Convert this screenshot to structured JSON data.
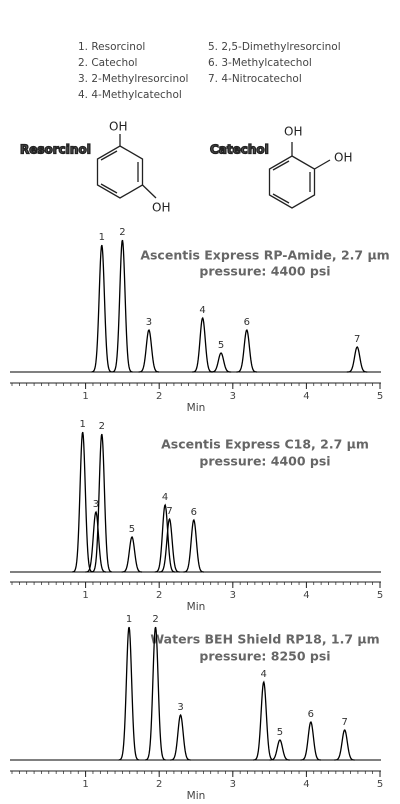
{
  "compounds": [
    "1. Resorcinol",
    "2. Catechol",
    "3. 2-Methylresorcinol",
    "4. 4-Methylcatechol",
    "5. 2,5-Dimethylresorcinol",
    "6. 3-Methylcatechol",
    "7. 4-Nitrocatechol"
  ],
  "structures": [
    {
      "name": "Resorcinol",
      "groups": [
        "OH",
        "OH"
      ]
    },
    {
      "name": "Catechol",
      "groups": [
        "OH",
        "OH"
      ]
    }
  ],
  "chart_data": [
    {
      "type": "chromatogram",
      "title": "Ascentis Express RP-Amide, 2.7 µm",
      "subtitle": "pressure: 4400 psi",
      "x_label": "Min",
      "xlim": [
        0,
        5
      ],
      "xticks": [
        1,
        2,
        3,
        4,
        5
      ],
      "color": "#000000",
      "peak_labels": [
        "1",
        "2",
        "3",
        "4",
        "5",
        "6",
        "7"
      ],
      "x": [
        1.22,
        1.5,
        1.86,
        2.59,
        2.84,
        3.19,
        4.69
      ],
      "values": [
        127,
        132,
        42,
        54,
        19,
        42,
        25
      ]
    },
    {
      "type": "chromatogram",
      "title": "Ascentis Express C18, 2.7 µm",
      "subtitle": "pressure: 4400 psi",
      "x_label": "Min",
      "xlim": [
        0,
        5
      ],
      "xticks": [
        1,
        2,
        3,
        4,
        5
      ],
      "color": "#000000",
      "peak_labels": [
        "1",
        "3",
        "2",
        "5",
        "4",
        "7",
        "6"
      ],
      "x": [
        0.96,
        1.14,
        1.22,
        1.63,
        2.08,
        2.14,
        2.47
      ],
      "values": [
        140,
        60,
        138,
        35,
        67,
        53,
        52
      ]
    },
    {
      "type": "chromatogram",
      "title": "Waters BEH Shield RP18, 1.7 µm",
      "subtitle": "pressure: 8250 psi",
      "x_label": "Min",
      "xlim": [
        0,
        5
      ],
      "xticks": [
        1,
        2,
        3,
        4,
        5
      ],
      "color": "#000000",
      "peak_labels": [
        "1",
        "2",
        "3",
        "4",
        "5",
        "6",
        "7"
      ],
      "x": [
        1.59,
        1.95,
        2.29,
        3.42,
        3.64,
        4.06,
        4.52
      ],
      "values": [
        133,
        133,
        45,
        78,
        20,
        38,
        30
      ]
    }
  ]
}
